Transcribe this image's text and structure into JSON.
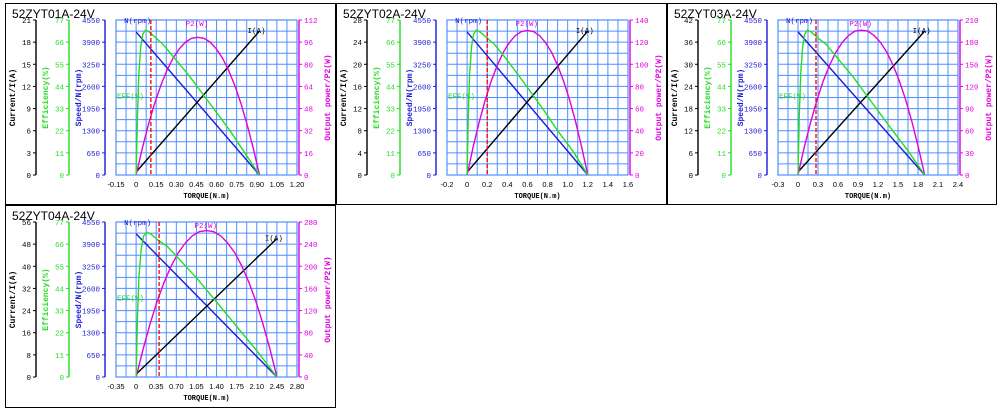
{
  "colors": {
    "grid": "#4f8fff",
    "current": "#000000",
    "efficiency": "#22dd22",
    "speed": "#1b1bd8",
    "power": "#e000e0",
    "marker": "#ee1111"
  },
  "chart_data": [
    {
      "title": "52ZYT01A-24V",
      "type": "line",
      "xlabel": "TORQUE(N.m)",
      "x_ticks": [
        "-0.15",
        "0",
        "0.15",
        "0.30",
        "0.45",
        "0.60",
        "0.75",
        "0.90",
        "1.05",
        "1.20"
      ],
      "xlim": [
        -0.15,
        1.2
      ],
      "axes": {
        "current": {
          "label": "Current/I(A)",
          "ticks": [
            "0",
            "3",
            "6",
            "9",
            "12",
            "15",
            "18",
            "21"
          ],
          "lim": [
            0,
            21
          ]
        },
        "efficiency": {
          "label": "Efficiency(%)",
          "ticks": [
            "0",
            "11",
            "22",
            "33",
            "44",
            "55",
            "66",
            "77"
          ],
          "lim": [
            0,
            77
          ]
        },
        "speed": {
          "label": "Speed/N(rpm)",
          "ticks": [
            "0",
            "650",
            "1300",
            "1950",
            "2600",
            "3250",
            "3900",
            "4550"
          ],
          "lim": [
            0,
            4550
          ]
        },
        "power": {
          "label": "Output power/P2(W)",
          "ticks": [
            "0",
            "16",
            "32",
            "48",
            "64",
            "80",
            "96",
            "112"
          ],
          "lim": [
            0,
            112
          ]
        }
      },
      "curve_labels": {
        "speed": "N(rpm)",
        "power": "P2(W)",
        "current": "I(A)",
        "efficiency": "EFF(%)"
      },
      "series": [
        {
          "name": "N(rpm)",
          "axis": "speed",
          "x": [
            0,
            0.92
          ],
          "y": [
            4200,
            0
          ]
        },
        {
          "name": "I(A)",
          "axis": "current",
          "x": [
            0,
            0.92
          ],
          "y": [
            0.4,
            19.5
          ]
        },
        {
          "name": "P2(W)",
          "axis": "power",
          "x": [
            0,
            0.046,
            0.092,
            0.138,
            0.184,
            0.23,
            0.276,
            0.322,
            0.368,
            0.414,
            0.46,
            0.506,
            0.552,
            0.598,
            0.644,
            0.69,
            0.736,
            0.782,
            0.828,
            0.874,
            0.92
          ],
          "y": [
            0,
            19.2,
            36.5,
            51.6,
            64.7,
            75.6,
            84.5,
            91.2,
            96.0,
            98.8,
            99.5,
            98.8,
            96.0,
            91.2,
            84.5,
            75.6,
            64.7,
            51.6,
            36.5,
            19.2,
            0
          ]
        },
        {
          "name": "EFF(%)",
          "axis": "efficiency",
          "x": [
            0,
            0.01,
            0.02,
            0.035,
            0.05,
            0.07,
            0.1,
            0.15,
            0.2,
            0.3,
            0.4,
            0.5,
            0.6,
            0.7,
            0.8,
            0.92
          ],
          "y": [
            0,
            30,
            50,
            64,
            70,
            72,
            71,
            68,
            65,
            57,
            49,
            40,
            31,
            22,
            12,
            0
          ]
        }
      ],
      "marker_x": 0.11
    },
    {
      "title": "52ZYT02A-24V",
      "type": "line",
      "xlabel": "TORQUE(N.m)",
      "x_ticks": [
        "-0.2",
        "0",
        "0.2",
        "0.4",
        "0.6",
        "0.8",
        "1.0",
        "1.2",
        "1.4",
        "1.6"
      ],
      "xlim": [
        -0.2,
        1.6
      ],
      "axes": {
        "current": {
          "label": "Current/I(A)",
          "ticks": [
            "0",
            "4",
            "8",
            "12",
            "16",
            "20",
            "24",
            "28"
          ],
          "lim": [
            0,
            28
          ]
        },
        "efficiency": {
          "label": "Efficiency(%)",
          "ticks": [
            "0",
            "11",
            "22",
            "33",
            "44",
            "55",
            "66",
            "77"
          ],
          "lim": [
            0,
            77
          ]
        },
        "speed": {
          "label": "Speed/N(rpm)",
          "ticks": [
            "0",
            "650",
            "1300",
            "1950",
            "2600",
            "3250",
            "3900",
            "4550"
          ],
          "lim": [
            0,
            4550
          ]
        },
        "power": {
          "label": "Output power/P2(W)",
          "ticks": [
            "0",
            "20",
            "40",
            "60",
            "80",
            "100",
            "120",
            "140"
          ],
          "lim": [
            0,
            140
          ]
        }
      },
      "curve_labels": {
        "speed": "N(rpm)",
        "power": "P2(W)",
        "current": "I(A)",
        "efficiency": "EFF(%)"
      },
      "series": [
        {
          "name": "N(rpm)",
          "axis": "speed",
          "x": [
            0,
            1.2
          ],
          "y": [
            4200,
            0
          ]
        },
        {
          "name": "I(A)",
          "axis": "current",
          "x": [
            0,
            1.2
          ],
          "y": [
            0.5,
            26
          ]
        },
        {
          "name": "P2(W)",
          "axis": "power",
          "x": [
            0,
            0.06,
            0.12,
            0.18,
            0.24,
            0.3,
            0.36,
            0.42,
            0.48,
            0.54,
            0.6,
            0.66,
            0.72,
            0.78,
            0.84,
            0.9,
            0.96,
            1.02,
            1.08,
            1.14,
            1.2
          ],
          "y": [
            0,
            25.1,
            47.8,
            67.6,
            84.8,
            99.1,
            110.8,
            119.6,
            125.9,
            129.6,
            130.5,
            129.6,
            125.9,
            119.6,
            110.8,
            99.1,
            84.8,
            67.6,
            47.8,
            25.1,
            0
          ]
        },
        {
          "name": "EFF(%)",
          "axis": "efficiency",
          "x": [
            0,
            0.012,
            0.025,
            0.045,
            0.065,
            0.09,
            0.13,
            0.2,
            0.27,
            0.4,
            0.52,
            0.65,
            0.78,
            0.9,
            1.05,
            1.2
          ],
          "y": [
            0,
            30,
            50,
            64,
            70,
            72,
            71,
            68,
            65,
            57,
            49,
            40,
            31,
            22,
            12,
            0
          ]
        }
      ],
      "marker_x": 0.2
    },
    {
      "title": "52ZYT03A-24V",
      "type": "line",
      "xlabel": "TORQUE(N.m)",
      "x_ticks": [
        "-0.3",
        "0",
        "0.3",
        "0.6",
        "0.9",
        "1.2",
        "1.5",
        "1.8",
        "2.1",
        "2.4"
      ],
      "xlim": [
        -0.3,
        2.4
      ],
      "axes": {
        "current": {
          "label": "Current/I(A)",
          "ticks": [
            "0",
            "6",
            "12",
            "18",
            "24",
            "30",
            "36",
            "42"
          ],
          "lim": [
            0,
            42
          ]
        },
        "efficiency": {
          "label": "Efficiency(%)",
          "ticks": [
            "0",
            "11",
            "22",
            "33",
            "44",
            "55",
            "66",
            "77"
          ],
          "lim": [
            0,
            77
          ]
        },
        "speed": {
          "label": "Speed/N(rpm)",
          "ticks": [
            "0",
            "650",
            "1300",
            "1950",
            "2600",
            "3250",
            "3900",
            "4550"
          ],
          "lim": [
            0,
            4550
          ]
        },
        "power": {
          "label": "Output power/P2(W)",
          "ticks": [
            "0",
            "30",
            "60",
            "90",
            "120",
            "150",
            "180",
            "210"
          ],
          "lim": [
            0,
            210
          ]
        }
      },
      "curve_labels": {
        "speed": "N(rpm)",
        "power": "P2(W)",
        "current": "I(A)",
        "efficiency": "EFF(%)"
      },
      "series": [
        {
          "name": "N(rpm)",
          "axis": "speed",
          "x": [
            0,
            1.9
          ],
          "y": [
            4200,
            0
          ]
        },
        {
          "name": "I(A)",
          "axis": "current",
          "x": [
            0,
            1.9
          ],
          "y": [
            0.8,
            39
          ]
        },
        {
          "name": "P2(W)",
          "axis": "power",
          "x": [
            0,
            0.095,
            0.19,
            0.285,
            0.38,
            0.475,
            0.57,
            0.665,
            0.76,
            0.855,
            0.95,
            1.045,
            1.14,
            1.235,
            1.33,
            1.425,
            1.52,
            1.615,
            1.71,
            1.805,
            1.9
          ],
          "y": [
            0,
            37.8,
            71.8,
            101.7,
            127.6,
            149.0,
            166.6,
            179.8,
            189.2,
            194.9,
            196.2,
            194.9,
            189.2,
            179.8,
            166.6,
            149.0,
            127.6,
            101.7,
            71.8,
            37.8,
            0
          ]
        },
        {
          "name": "EFF(%)",
          "axis": "efficiency",
          "x": [
            0,
            0.02,
            0.04,
            0.07,
            0.1,
            0.14,
            0.2,
            0.3,
            0.42,
            0.62,
            0.82,
            1.02,
            1.22,
            1.42,
            1.65,
            1.9
          ],
          "y": [
            0,
            30,
            50,
            64,
            70,
            72,
            71,
            68,
            65,
            57,
            49,
            40,
            31,
            22,
            12,
            0
          ]
        }
      ],
      "marker_x": 0.27
    },
    {
      "title": "52ZYT04A-24V",
      "type": "line",
      "xlabel": "TORQUE(N.m)",
      "x_ticks": [
        "-0.35",
        "0",
        "0.35",
        "0.70",
        "1.05",
        "1.40",
        "1.75",
        "2.10",
        "2.45",
        "2.80"
      ],
      "xlim": [
        -0.35,
        2.8
      ],
      "axes": {
        "current": {
          "label": "Current/I(A)",
          "ticks": [
            "0",
            "8",
            "16",
            "24",
            "32",
            "40",
            "48",
            "56"
          ],
          "lim": [
            0,
            56
          ]
        },
        "efficiency": {
          "label": "Efficiency(%)",
          "ticks": [
            "0",
            "11",
            "22",
            "33",
            "44",
            "55",
            "66",
            "77"
          ],
          "lim": [
            0,
            77
          ]
        },
        "speed": {
          "label": "Speed/N(rpm)",
          "ticks": [
            "0",
            "650",
            "1300",
            "1950",
            "2600",
            "3250",
            "3900",
            "4550"
          ],
          "lim": [
            0,
            4550
          ]
        },
        "power": {
          "label": "Output power/P2(W)",
          "ticks": [
            "0",
            "40",
            "80",
            "120",
            "160",
            "200",
            "240",
            "280"
          ],
          "lim": [
            0,
            280
          ]
        }
      },
      "curve_labels": {
        "speed": "N(rpm)",
        "power": "P2(W)",
        "current": "I(A)",
        "efficiency": "EFF(%)"
      },
      "series": [
        {
          "name": "N(rpm)",
          "axis": "speed",
          "x": [
            0,
            2.45
          ],
          "y": [
            4200,
            0
          ]
        },
        {
          "name": "I(A)",
          "axis": "current",
          "x": [
            0,
            2.45
          ],
          "y": [
            1.0,
            50
          ]
        },
        {
          "name": "P2(W)",
          "axis": "power",
          "x": [
            0,
            0.1225,
            0.245,
            0.3675,
            0.49,
            0.6125,
            0.735,
            0.8575,
            0.98,
            1.1025,
            1.225,
            1.3475,
            1.47,
            1.5925,
            1.715,
            1.8375,
            1.96,
            2.0825,
            2.205,
            2.3275,
            2.45
          ],
          "y": [
            0,
            50.9,
            96.8,
            137.1,
            172.0,
            200.8,
            224.5,
            242.3,
            255.0,
            262.6,
            264.5,
            262.6,
            255.0,
            242.3,
            224.5,
            200.8,
            172.0,
            137.1,
            96.8,
            50.9,
            0
          ]
        },
        {
          "name": "EFF(%)",
          "axis": "efficiency",
          "x": [
            0,
            0.025,
            0.05,
            0.09,
            0.13,
            0.18,
            0.26,
            0.38,
            0.54,
            0.8,
            1.06,
            1.32,
            1.58,
            1.84,
            2.13,
            2.45
          ],
          "y": [
            0,
            30,
            50,
            64,
            70,
            72,
            71,
            68,
            65,
            57,
            49,
            40,
            31,
            22,
            12,
            0
          ]
        }
      ],
      "marker_x": 0.4
    }
  ]
}
